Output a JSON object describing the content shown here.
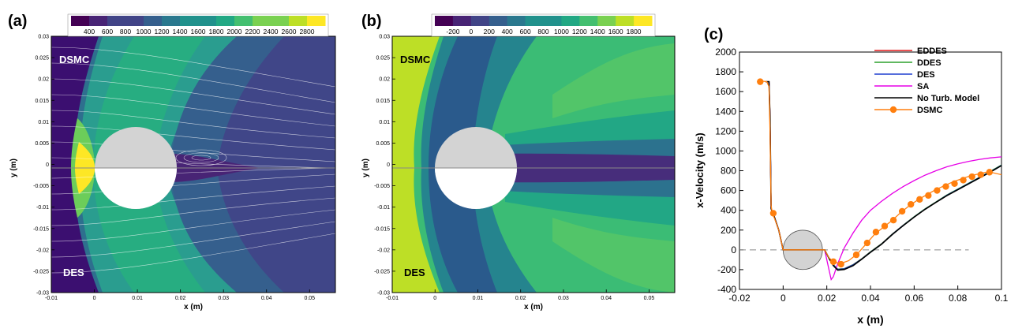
{
  "chart_data": [
    {
      "panel_label": "(a)",
      "type": "heatmap",
      "xlabel": "x (m)",
      "ylabel": "y (m)",
      "xlim": [
        -0.01,
        0.056
      ],
      "ylim": [
        -0.03,
        0.03
      ],
      "x_ticks": [
        "-0.01",
        "0",
        "0.01",
        "0.02",
        "0.03",
        "0.04",
        "0.05"
      ],
      "y_ticks": [
        "0.03",
        "0.025",
        "0.02",
        "0.015",
        "0.01",
        "0.005",
        "0",
        "-0.005",
        "-0.01",
        "-0.015",
        "-0.02",
        "-0.025",
        "-0.03"
      ],
      "colorbar_ticks": [
        "400",
        "600",
        "800",
        "1000",
        "1200",
        "1400",
        "1600",
        "1800",
        "2000",
        "2200",
        "2400",
        "2600",
        "2800"
      ],
      "top_half_label": "DSMC",
      "bottom_half_label": "DES",
      "streamlines": true
    },
    {
      "panel_label": "(b)",
      "type": "heatmap",
      "xlabel": "x (m)",
      "ylabel": "y (m)",
      "xlim": [
        -0.01,
        0.056
      ],
      "ylim": [
        -0.03,
        0.03
      ],
      "x_ticks": [
        "-0.01",
        "0",
        "0.01",
        "0.02",
        "0.03",
        "0.04",
        "0.05"
      ],
      "y_ticks": [
        "0.03",
        "0.025",
        "0.02",
        "0.015",
        "0.01",
        "0.005",
        "0",
        "-0.005",
        "-0.01",
        "-0.015",
        "-0.02",
        "-0.025",
        "-0.03"
      ],
      "colorbar_ticks": [
        "-200",
        "0",
        "200",
        "400",
        "600",
        "800",
        "1000",
        "1200",
        "1400",
        "1600",
        "1800"
      ],
      "top_half_label": "DSMC",
      "bottom_half_label": "DES",
      "streamlines": false
    },
    {
      "panel_label": "(c)",
      "type": "line",
      "xlabel": "x (m)",
      "ylabel": "x-Velocity (m/s)",
      "xlim": [
        -0.02,
        0.1
      ],
      "ylim": [
        -400,
        2000
      ],
      "x_ticks": [
        "-0.02",
        "0",
        "0.02",
        "0.04",
        "0.06",
        "0.08",
        "0.1"
      ],
      "y_ticks": [
        "2000",
        "1800",
        "1600",
        "1400",
        "1200",
        "1000",
        "800",
        "600",
        "400",
        "200",
        "0",
        "-200",
        "-400"
      ],
      "legend_position": "top-right",
      "series": [
        {
          "name": "EDDES",
          "color": "#e41a1c",
          "x": [
            -0.008,
            -0.0065,
            -0.006,
            -0.0055,
            -0.005,
            -0.004,
            -0.002,
            0,
            0.004,
            0.008,
            0.012,
            0.016,
            0.019,
            0.021,
            0.023,
            0.025,
            0.028,
            0.032,
            0.036,
            0.04,
            0.045,
            0.05,
            0.055,
            0.06,
            0.065,
            0.07,
            0.075,
            0.08,
            0.085,
            0.09,
            0.095,
            0.1
          ],
          "y": [
            1700,
            1700,
            1350,
            420,
            380,
            330,
            200,
            0,
            0,
            0,
            0,
            0,
            0,
            -80,
            -150,
            -195,
            -190,
            -150,
            -90,
            -20,
            60,
            160,
            250,
            330,
            410,
            480,
            550,
            610,
            670,
            730,
            790,
            855
          ]
        },
        {
          "name": "DDES",
          "color": "#2ca02c",
          "x": [
            -0.008,
            -0.0065,
            -0.006,
            -0.0055,
            -0.005,
            -0.004,
            -0.002,
            0,
            0.004,
            0.008,
            0.012,
            0.016,
            0.019,
            0.021,
            0.023,
            0.025,
            0.028,
            0.032,
            0.036,
            0.04,
            0.045,
            0.05,
            0.055,
            0.06,
            0.065,
            0.07,
            0.075,
            0.08,
            0.085,
            0.09,
            0.095,
            0.1
          ],
          "y": [
            1700,
            1700,
            1350,
            420,
            380,
            330,
            200,
            0,
            0,
            0,
            0,
            0,
            0,
            -80,
            -150,
            -195,
            -190,
            -150,
            -90,
            -20,
            60,
            160,
            250,
            335,
            415,
            485,
            555,
            615,
            675,
            735,
            795,
            858
          ]
        },
        {
          "name": "DES",
          "color": "#1f3fcf",
          "x": [
            -0.008,
            -0.0065,
            -0.006,
            -0.0055,
            -0.005,
            -0.004,
            -0.002,
            0,
            0.004,
            0.008,
            0.012,
            0.016,
            0.019,
            0.021,
            0.023,
            0.025,
            0.028,
            0.032,
            0.036,
            0.04,
            0.045,
            0.05,
            0.055,
            0.06,
            0.065,
            0.07,
            0.075,
            0.08,
            0.085,
            0.09,
            0.095,
            0.1
          ],
          "y": [
            1700,
            1700,
            1350,
            420,
            380,
            330,
            200,
            0,
            0,
            0,
            0,
            0,
            0,
            -80,
            -152,
            -198,
            -192,
            -152,
            -92,
            -22,
            58,
            158,
            248,
            332,
            412,
            482,
            552,
            612,
            672,
            732,
            792,
            856
          ]
        },
        {
          "name": "SA",
          "color": "#e600e6",
          "x": [
            -0.008,
            -0.0065,
            -0.006,
            -0.0055,
            -0.005,
            -0.004,
            -0.002,
            0,
            0.004,
            0.008,
            0.012,
            0.016,
            0.019,
            0.021,
            0.022,
            0.023,
            0.025,
            0.028,
            0.032,
            0.036,
            0.04,
            0.045,
            0.05,
            0.055,
            0.06,
            0.065,
            0.07,
            0.075,
            0.08,
            0.085,
            0.09,
            0.095,
            0.1
          ],
          "y": [
            1700,
            1700,
            1350,
            420,
            380,
            330,
            200,
            0,
            0,
            0,
            0,
            0,
            0,
            -200,
            -300,
            -270,
            -140,
            20,
            170,
            300,
            400,
            490,
            570,
            640,
            700,
            755,
            800,
            840,
            870,
            895,
            915,
            930,
            940
          ]
        },
        {
          "name": "No Turb. Model",
          "color": "#000000",
          "x": [
            -0.008,
            -0.0065,
            -0.006,
            -0.0055,
            -0.005,
            -0.004,
            -0.002,
            0,
            0.004,
            0.008,
            0.012,
            0.016,
            0.019,
            0.021,
            0.023,
            0.025,
            0.028,
            0.032,
            0.036,
            0.04,
            0.045,
            0.05,
            0.055,
            0.06,
            0.065,
            0.07,
            0.075,
            0.08,
            0.085,
            0.09,
            0.095,
            0.1
          ],
          "y": [
            1700,
            1700,
            1350,
            420,
            380,
            330,
            200,
            0,
            0,
            0,
            0,
            0,
            0,
            -85,
            -160,
            -205,
            -198,
            -160,
            -95,
            -25,
            55,
            155,
            245,
            330,
            410,
            480,
            548,
            608,
            668,
            728,
            788,
            852
          ]
        },
        {
          "name": "DSMC",
          "color": "#ff7f0e",
          "markers": true,
          "x": [
            -0.0105,
            -0.009,
            -0.0075,
            -0.0065,
            -0.006,
            -0.0055,
            -0.005,
            -0.004,
            -0.002,
            0,
            0.004,
            0.008,
            0.012,
            0.016,
            0.019,
            0.021,
            0.023,
            0.026,
            0.03,
            0.034,
            0.038,
            0.042,
            0.046,
            0.05,
            0.054,
            0.058,
            0.062,
            0.066,
            0.07,
            0.074,
            0.078,
            0.082,
            0.086,
            0.09,
            0.094,
            0.1
          ],
          "y": [
            1700,
            1705,
            1700,
            1650,
            1200,
            450,
            370,
            320,
            200,
            0,
            0,
            0,
            0,
            0,
            0,
            -80,
            -120,
            -140,
            -110,
            -40,
            60,
            160,
            230,
            300,
            380,
            450,
            510,
            560,
            610,
            650,
            690,
            720,
            750,
            770,
            790,
            760
          ],
          "marker_x": [
            -0.0105,
            -0.0045,
            0.023,
            0.0265,
            0.0335,
            0.0385,
            0.0425,
            0.0465,
            0.0505,
            0.0545,
            0.0585,
            0.0625,
            0.0665,
            0.0705,
            0.0745,
            0.0785,
            0.0825,
            0.0865,
            0.0905,
            0.0945
          ],
          "marker_y": [
            1700,
            370,
            -120,
            -145,
            -50,
            70,
            180,
            240,
            300,
            390,
            460,
            510,
            550,
            600,
            640,
            670,
            705,
            740,
            760,
            785
          ]
        }
      ],
      "reference_line": {
        "y": 0,
        "x_end": 0.085,
        "style": "dashed"
      },
      "cylinder": {
        "center_x": 0.009,
        "radius": 0.009
      }
    }
  ]
}
